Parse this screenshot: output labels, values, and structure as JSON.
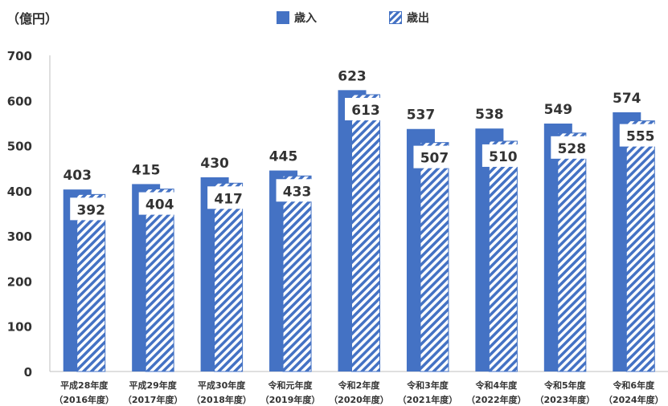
{
  "chart_data": {
    "type": "bar",
    "unit_label": "（億円）",
    "categories": [
      "平成28年度",
      "平成29年度",
      "平成30年度",
      "令和元年度",
      "令和2年度",
      "令和3年度",
      "令和4年度",
      "令和5年度",
      "令和6年度"
    ],
    "category_sublabels": [
      "（2016年度）",
      "（2017年度）",
      "（2018年度）",
      "（2019年度）",
      "（2020年度）",
      "（2021年度）",
      "（2022年度）",
      "（2023年度）",
      "（2024年度）"
    ],
    "series": [
      {
        "name": "歳入",
        "values": [
          403,
          415,
          430,
          445,
          623,
          537,
          538,
          549,
          574
        ],
        "color": "#4472c4",
        "fill": "solid"
      },
      {
        "name": "歳出",
        "values": [
          392,
          404,
          417,
          433,
          613,
          507,
          510,
          528,
          555
        ],
        "color": "#4472c4",
        "fill": "hatched"
      }
    ],
    "yticks": [
      0,
      100,
      200,
      300,
      400,
      500,
      600,
      700
    ],
    "ylim": [
      0,
      700
    ],
    "grid": false,
    "legend_position": "top-center",
    "data_labels": true
  }
}
